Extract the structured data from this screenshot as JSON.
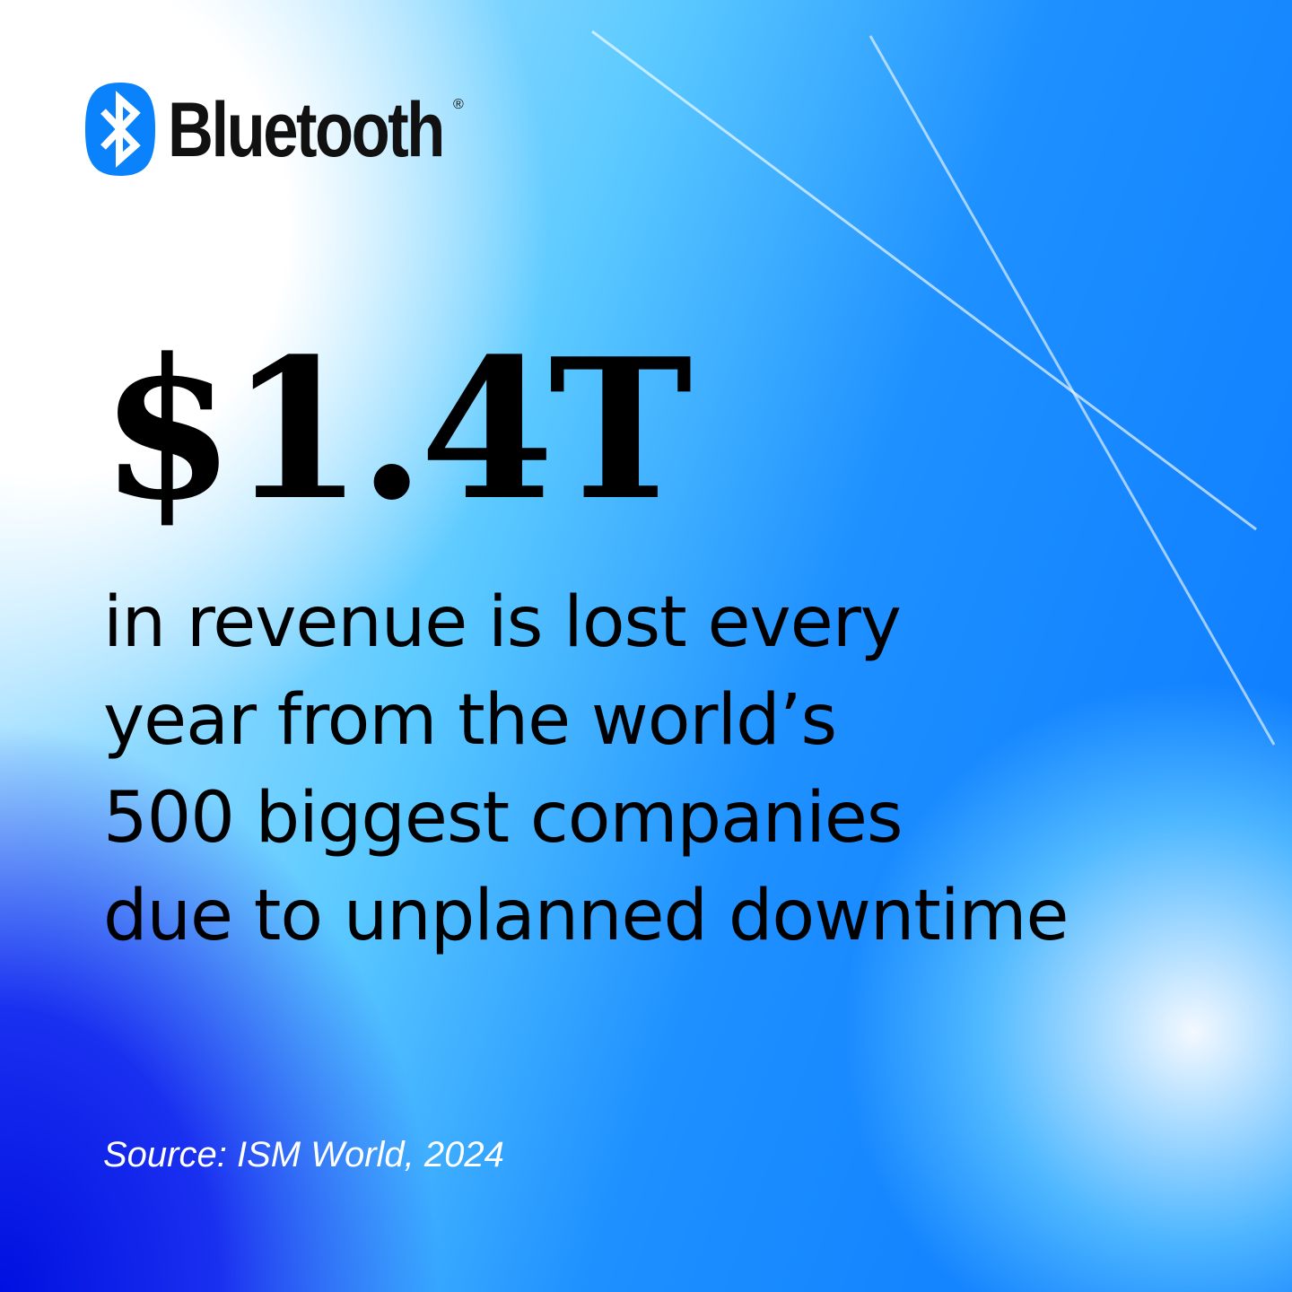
{
  "brand": {
    "name": "Bluetooth",
    "mark": "®"
  },
  "headline": "$1.4T",
  "body_lines": [
    "in revenue is lost every",
    "year from the world’s",
    "500 biggest companies",
    "due to unplanned downtime"
  ],
  "source": "Source: ISM World, 2024"
}
